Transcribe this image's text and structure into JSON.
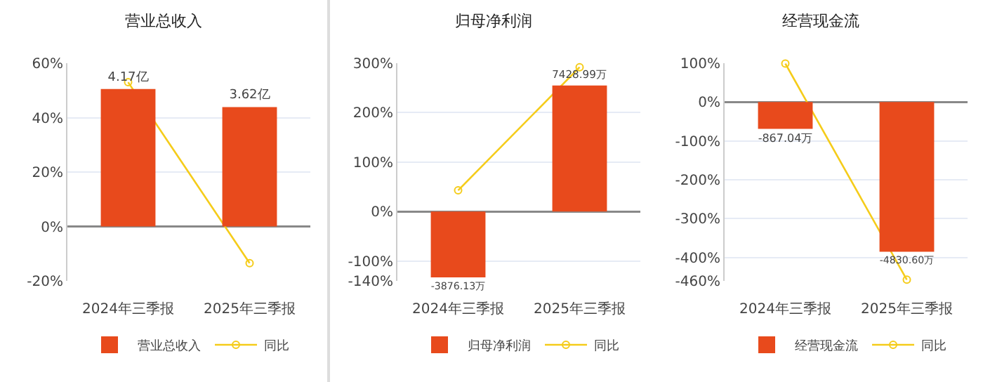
{
  "chart_data": [
    {
      "type": "bar",
      "title": "营业总收入",
      "categories": [
        "2024年三季报",
        "2025年三季报"
      ],
      "series": [
        {
          "name": "营业总收入",
          "axis": "y2",
          "color": "#e84a1c",
          "values": [
            4.17,
            3.62
          ],
          "value_labels": [
            "4.17亿",
            "3.62亿"
          ]
        },
        {
          "name": "同比",
          "type": "line",
          "axis": "y",
          "color": "#f5cc1a",
          "values": [
            53,
            -13.5
          ]
        }
      ],
      "ylim": [
        -20,
        60
      ],
      "yticks": [
        {
          "value": -20,
          "label": "-20%"
        },
        {
          "value": 0,
          "label": "0%"
        },
        {
          "value": 20,
          "label": "20%"
        },
        {
          "value": 40,
          "label": "40%"
        },
        {
          "value": 60,
          "label": "60%"
        }
      ],
      "y2lim": [
        -1.65,
        4.95
      ],
      "grid": "y",
      "legend": "bottom",
      "marker": "circle",
      "line_style": "solid"
    },
    {
      "type": "bar",
      "title": "归母净利润",
      "categories": [
        "2024年三季报",
        "2025年三季报"
      ],
      "series": [
        {
          "name": "归母净利润",
          "axis": "y2",
          "color": "#e84a1c",
          "values": [
            -3876.13,
            7428.99
          ],
          "value_labels": [
            "-3876.13万",
            "7428.99万"
          ]
        },
        {
          "name": "同比",
          "type": "line",
          "axis": "y",
          "color": "#f5cc1a",
          "values": [
            43,
            292
          ]
        }
      ],
      "ylim": [
        -140,
        300
      ],
      "yticks": [
        {
          "value": -140,
          "label": "-140%"
        },
        {
          "value": -100,
          "label": "-100%"
        },
        {
          "value": 0,
          "label": "0%"
        },
        {
          "value": 100,
          "label": "100%"
        },
        {
          "value": 200,
          "label": "200%"
        },
        {
          "value": 300,
          "label": "300%"
        }
      ],
      "y2lim": [
        -4079,
        8740
      ],
      "grid": "y",
      "legend": "bottom",
      "marker": "circle",
      "line_style": "solid"
    },
    {
      "type": "bar",
      "title": "经营现金流",
      "categories": [
        "2024年三季报",
        "2025年三季报"
      ],
      "series": [
        {
          "name": "经营现金流",
          "axis": "y2",
          "color": "#e84a1c",
          "values": [
            -867.04,
            -4830.6
          ],
          "value_labels": [
            "-867.04万",
            "-4830.60万"
          ]
        },
        {
          "name": "同比",
          "type": "line",
          "axis": "y",
          "color": "#f5cc1a",
          "values": [
            99,
            -457
          ]
        }
      ],
      "ylim": [
        -460,
        100
      ],
      "yticks": [
        {
          "value": -460,
          "label": "-460%"
        },
        {
          "value": -400,
          "label": "-400%"
        },
        {
          "value": -300,
          "label": "-300%"
        },
        {
          "value": -200,
          "label": "-200%"
        },
        {
          "value": -100,
          "label": "-100%"
        },
        {
          "value": 0,
          "label": "0%"
        },
        {
          "value": 100,
          "label": "100%"
        }
      ],
      "y2lim": [
        -5773,
        1255
      ],
      "grid": "y",
      "legend": "bottom",
      "marker": "circle",
      "line_style": "solid"
    }
  ]
}
